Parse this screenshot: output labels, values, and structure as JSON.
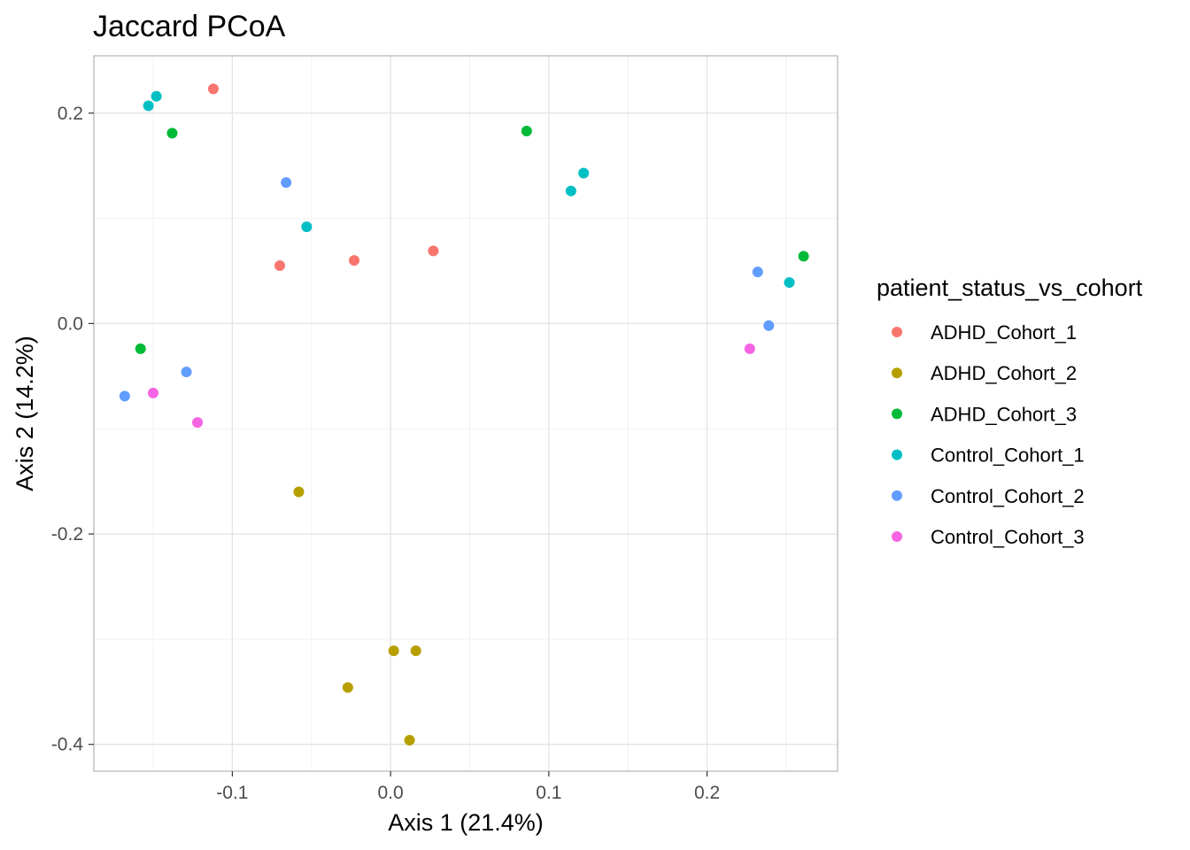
{
  "chart_data": {
    "type": "scatter",
    "title": "Jaccard PCoA",
    "xlabel": "Axis 1 (21.4%)",
    "ylabel": "Axis 2 (14.2%)",
    "xlim": [
      -0.1875,
      0.2825
    ],
    "ylim": [
      -0.4255,
      0.2545
    ],
    "xticks": [
      -0.1,
      0.0,
      0.1,
      0.2
    ],
    "xtick_labels": [
      "-0.1",
      "0.0",
      "0.1",
      "0.2"
    ],
    "yticks": [
      -0.4,
      -0.2,
      0.0,
      0.2
    ],
    "ytick_labels": [
      "-0.4",
      "-0.2",
      "0.0",
      "0.2"
    ],
    "grid": true,
    "legend_title": "patient_status_vs_cohort",
    "legend_position": "right",
    "series": [
      {
        "name": "ADHD_Cohort_1",
        "color": "#F8766D",
        "points": [
          [
            -0.112,
            0.223
          ],
          [
            -0.07,
            0.055
          ],
          [
            -0.023,
            0.06
          ],
          [
            0.027,
            0.069
          ]
        ]
      },
      {
        "name": "ADHD_Cohort_2",
        "color": "#B79F00",
        "points": [
          [
            -0.058,
            -0.16
          ],
          [
            0.002,
            -0.311
          ],
          [
            0.016,
            -0.311
          ],
          [
            -0.027,
            -0.346
          ],
          [
            0.012,
            -0.396
          ]
        ]
      },
      {
        "name": "ADHD_Cohort_3",
        "color": "#00BA38",
        "points": [
          [
            -0.138,
            0.181
          ],
          [
            -0.158,
            -0.024
          ],
          [
            0.086,
            0.183
          ],
          [
            0.261,
            0.064
          ]
        ]
      },
      {
        "name": "Control_Cohort_1",
        "color": "#00BFC4",
        "points": [
          [
            -0.148,
            0.216
          ],
          [
            -0.153,
            0.207
          ],
          [
            -0.053,
            0.092
          ],
          [
            0.114,
            0.126
          ],
          [
            0.122,
            0.143
          ],
          [
            0.252,
            0.039
          ]
        ]
      },
      {
        "name": "Control_Cohort_2",
        "color": "#619CFF",
        "points": [
          [
            -0.066,
            0.134
          ],
          [
            -0.129,
            -0.046
          ],
          [
            -0.168,
            -0.069
          ],
          [
            0.232,
            0.049
          ],
          [
            0.239,
            -0.002
          ]
        ]
      },
      {
        "name": "Control_Cohort_3",
        "color": "#F564E3",
        "points": [
          [
            -0.15,
            -0.066
          ],
          [
            -0.122,
            -0.094
          ],
          [
            0.227,
            -0.024
          ]
        ]
      }
    ]
  }
}
